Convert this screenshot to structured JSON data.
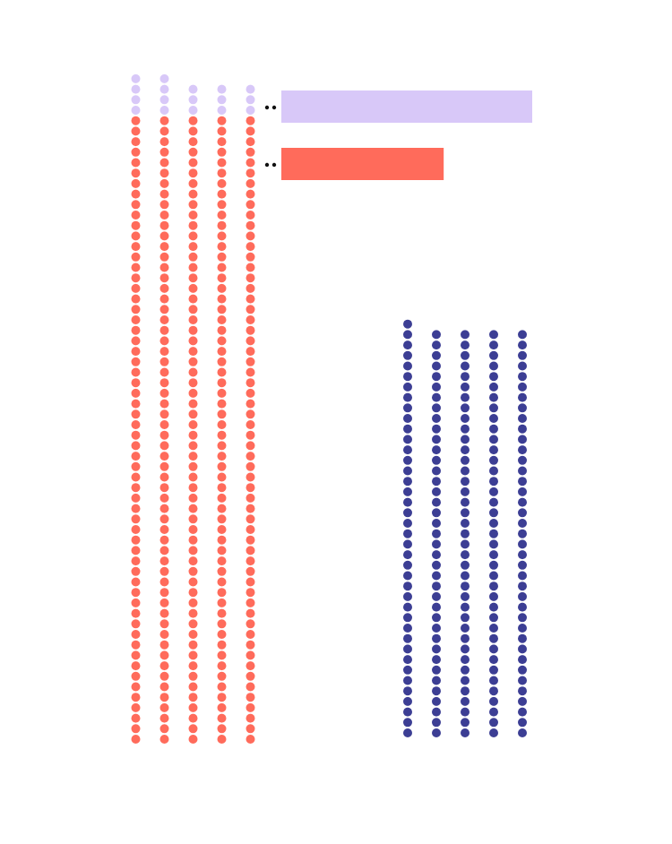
{
  "chart_data": {
    "type": "waffle",
    "title": "",
    "legend": "none",
    "colors": {
      "lavender": "#d8c8f8",
      "coral": "#ff6b5b",
      "navy": "#3c3e94",
      "connector": "#111111"
    },
    "groups": [
      {
        "columns": 5,
        "segments": [
          {
            "color": "lavender",
            "count": 17
          },
          {
            "color": "coral",
            "count": 300
          }
        ]
      },
      {
        "columns": 5,
        "segments": [
          {
            "color": "navy",
            "count": 196
          }
        ]
      }
    ],
    "bars": [
      {
        "color": "lavender",
        "value": 17
      },
      {
        "color": "coral",
        "value": 11
      }
    ]
  }
}
